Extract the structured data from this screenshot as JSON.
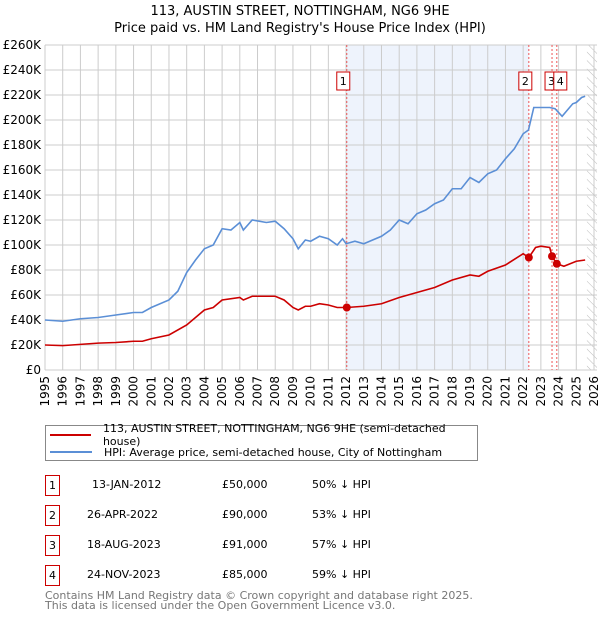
{
  "chart_data": {
    "type": "line",
    "title": "113, AUSTIN STREET, NOTTINGHAM, NG6 9HE",
    "subtitle": "Price paid vs. HM Land Registry's House Price Index (HPI)",
    "xlim": [
      1995,
      2026
    ],
    "ylim": [
      0,
      260000
    ],
    "x_ticks": [
      "1995",
      "1996",
      "1997",
      "1998",
      "1999",
      "2000",
      "2001",
      "2002",
      "2003",
      "2004",
      "2005",
      "2006",
      "2007",
      "2008",
      "2009",
      "2010",
      "2011",
      "2012",
      "2013",
      "2014",
      "2015",
      "2016",
      "2017",
      "2018",
      "2019",
      "2020",
      "2021",
      "2022",
      "2023",
      "2024",
      "2025",
      "2026"
    ],
    "y_ticks": [
      "£0",
      "£20K",
      "£40K",
      "£60K",
      "£80K",
      "£100K",
      "£120K",
      "£140K",
      "£160K",
      "£180K",
      "£200K",
      "£220K",
      "£240K",
      "£260K"
    ],
    "grid": true,
    "series": [
      {
        "name": "113, AUSTIN STREET, NOTTINGHAM, NG6 9HE (semi-detached house)",
        "color": "#cc0000",
        "x": [
          1995,
          1996,
          1997,
          1998,
          1999,
          2000,
          2000.5,
          2001,
          2002,
          2003,
          2004,
          2004.5,
          2005,
          2006,
          2006.2,
          2006.7,
          2008,
          2008.5,
          2009,
          2009.3,
          2009.7,
          2010,
          2010.5,
          2011,
          2011.5,
          2012.04,
          2013,
          2014,
          2015,
          2016,
          2017,
          2018,
          2019,
          2019.5,
          2020,
          2021,
          2022,
          2022.32,
          2022.7,
          2023,
          2023.5,
          2023.63,
          2023.9,
          2024.3,
          2025,
          2025.5
        ],
        "y": [
          20,
          19.5,
          20.5,
          21.5,
          22,
          23,
          23,
          25,
          28,
          36,
          48,
          50,
          56,
          58,
          56,
          59,
          59,
          56,
          50,
          48,
          51,
          51,
          53,
          52,
          50,
          50,
          51,
          53,
          58,
          62,
          66,
          72,
          76,
          75,
          79,
          84,
          93,
          90,
          98,
          99,
          98,
          91,
          85,
          83,
          87,
          88
        ]
      },
      {
        "name": "HPI: Average price, semi-detached house, City of Nottingham",
        "color": "#5b8fd6",
        "x": [
          1995,
          1996,
          1997,
          1998,
          1999,
          2000,
          2000.5,
          2001,
          2002,
          2002.5,
          2003,
          2003.5,
          2004,
          2004.5,
          2005,
          2005.5,
          2006,
          2006.2,
          2006.7,
          2007.5,
          2008,
          2008.5,
          2009,
          2009.3,
          2009.7,
          2010,
          2010.5,
          2011,
          2011.5,
          2011.8,
          2012,
          2012.5,
          2013,
          2013.5,
          2014,
          2014.5,
          2015,
          2015.5,
          2016,
          2016.5,
          2017,
          2017.5,
          2018,
          2018.5,
          2019,
          2019.5,
          2020,
          2020.5,
          2021,
          2021.5,
          2022,
          2022.3,
          2022.6,
          2023,
          2023.5,
          2023.8,
          2024.2,
          2024.5,
          2024.8,
          2025,
          2025.3,
          2025.5
        ],
        "y": [
          40,
          39,
          41,
          42,
          44,
          46,
          46,
          50,
          56,
          63,
          78,
          88,
          97,
          100,
          113,
          112,
          118,
          112,
          120,
          118,
          119,
          113,
          105,
          97,
          104,
          103,
          107,
          105,
          100,
          105,
          101,
          103,
          101,
          104,
          107,
          112,
          120,
          117,
          125,
          128,
          133,
          136,
          145,
          145,
          154,
          150,
          157,
          160,
          169,
          177,
          189,
          192,
          210,
          210,
          210,
          209,
          203,
          208,
          213,
          214,
          218,
          219
        ]
      }
    ],
    "y_unit": "thousands GBP",
    "sales": [
      {
        "id": "1",
        "x": 2012.04,
        "y": 50,
        "date": "13-JAN-2012",
        "price": "£50,000",
        "hpi": "50% ↓ HPI"
      },
      {
        "id": "2",
        "x": 2022.32,
        "y": 90,
        "date": "26-APR-2022",
        "price": "£90,000",
        "hpi": "53% ↓ HPI"
      },
      {
        "id": "3",
        "x": 2023.63,
        "y": 91,
        "date": "18-AUG-2023",
        "price": "£91,000",
        "hpi": "57% ↓ HPI"
      },
      {
        "id": "4",
        "x": 2023.9,
        "y": 85,
        "date": "24-NOV-2023",
        "price": "£85,000",
        "hpi": "59% ↓ HPI"
      }
    ],
    "shaded_range": [
      2012.04,
      2022.32
    ],
    "forecast_from": 2025.6
  },
  "footer": {
    "line1": "Contains HM Land Registry data © Crown copyright and database right 2025.",
    "line2": "This data is licensed under the Open Government Licence v3.0."
  }
}
